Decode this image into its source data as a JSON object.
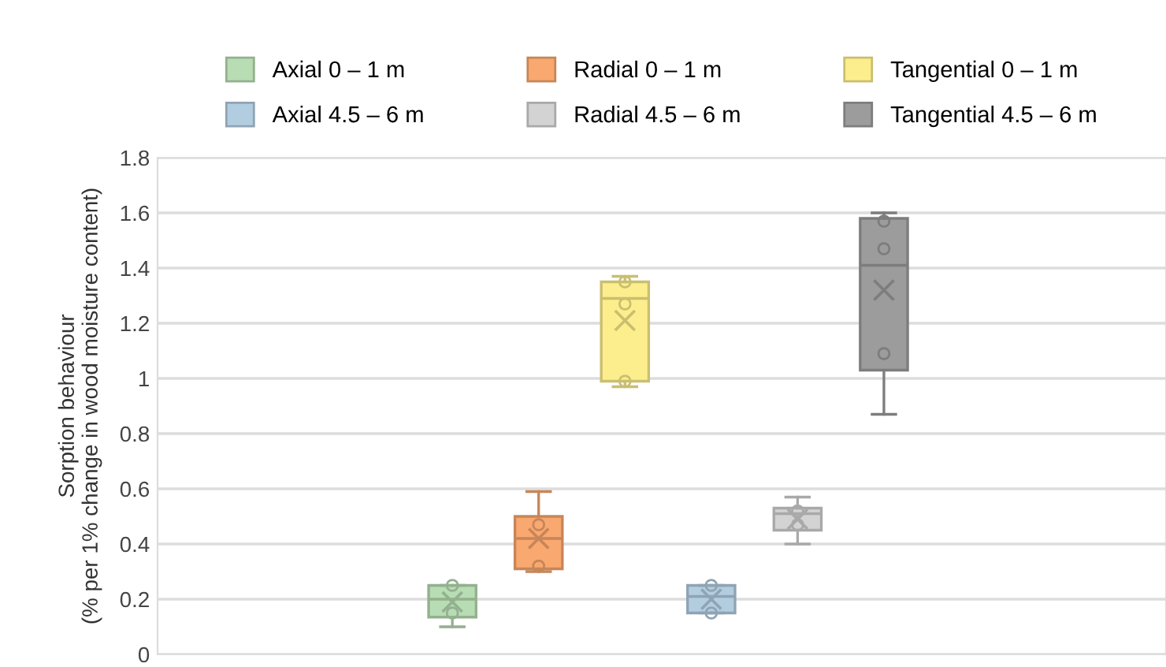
{
  "chart_data": {
    "type": "box",
    "ylabel": "Sorption behaviour\n(% per 1% change in wood moisture content)",
    "categories": [
      null
    ],
    "series": [
      {
        "name": "Axial 0 – 1 m",
        "color": "#b8dcb3",
        "boxes": [
          {
            "low": 0.1,
            "q1": 0.135,
            "median": 0.2,
            "q3": 0.25,
            "high": 0.25,
            "mean": 0.19,
            "outliers": [
              0.25,
              0.15
            ]
          }
        ]
      },
      {
        "name": "Radial 0 – 1 m",
        "color": "#f9a86f",
        "boxes": [
          {
            "low": 0.3,
            "q1": 0.31,
            "median": 0.42,
            "q3": 0.5,
            "high": 0.59,
            "mean": 0.42,
            "outliers": [
              0.47,
              0.32
            ]
          }
        ]
      },
      {
        "name": "Tangential 0 – 1 m",
        "color": "#fcee8c",
        "boxes": [
          {
            "low": 0.97,
            "q1": 0.99,
            "median": 1.29,
            "q3": 1.35,
            "high": 1.37,
            "mean": 1.21,
            "outliers": [
              1.35,
              1.27,
              0.99
            ]
          }
        ]
      },
      {
        "name": "Axial 4.5 – 6 m",
        "color": "#b3cde0",
        "boxes": [
          {
            "low": 0.15,
            "q1": 0.15,
            "median": 0.21,
            "q3": 0.25,
            "high": 0.25,
            "mean": 0.2,
            "outliers": [
              0.25,
              0.15
            ]
          }
        ]
      },
      {
        "name": "Radial 4.5 – 6 m",
        "color": "#d3d3d3",
        "boxes": [
          {
            "low": 0.4,
            "q1": 0.45,
            "median": 0.51,
            "q3": 0.53,
            "high": 0.57,
            "mean": 0.49,
            "outliers": [
              0.52,
              0.47
            ]
          }
        ]
      },
      {
        "name": "Tangential 4.5 – 6 m",
        "color": "#9c9c9c",
        "boxes": [
          {
            "low": 0.87,
            "q1": 1.03,
            "median": 1.41,
            "q3": 1.58,
            "high": 1.6,
            "mean": 1.32,
            "outliers": [
              1.57,
              1.47,
              1.09
            ]
          }
        ]
      }
    ],
    "ylim": [
      0,
      1.8
    ],
    "yticks": [
      0,
      0.2,
      0.4,
      0.6,
      0.8,
      1,
      1.2,
      1.4,
      1.6,
      1.8
    ],
    "grid": "y",
    "legend": "top",
    "tick_labels": "y"
  }
}
